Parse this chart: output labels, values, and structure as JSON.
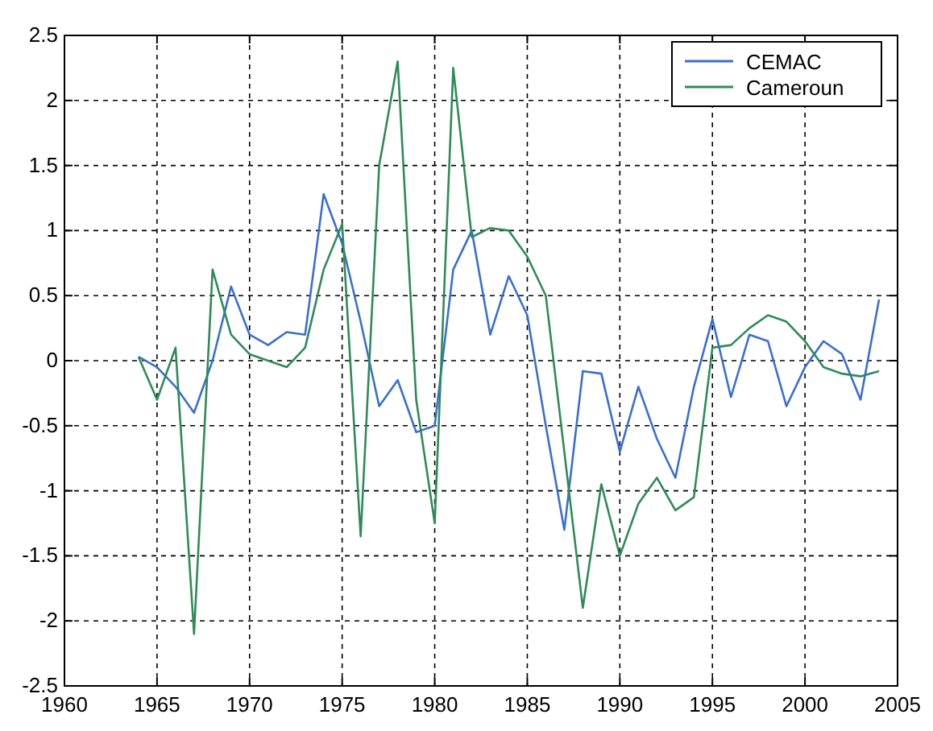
{
  "chart_data": {
    "type": "line",
    "x": [
      1964,
      1965,
      1966,
      1967,
      1968,
      1969,
      1970,
      1971,
      1972,
      1973,
      1974,
      1975,
      1976,
      1977,
      1978,
      1979,
      1980,
      1981,
      1982,
      1983,
      1984,
      1985,
      1986,
      1987,
      1988,
      1989,
      1990,
      1991,
      1992,
      1993,
      1994,
      1995,
      1996,
      1997,
      1998,
      1999,
      2000,
      2001,
      2002,
      2003,
      2004
    ],
    "series": [
      {
        "name": "CEMAC",
        "color": "#3a6fd0",
        "values": [
          0.03,
          -0.05,
          -0.2,
          -0.4,
          0.0,
          0.57,
          0.2,
          0.12,
          0.22,
          0.2,
          1.28,
          0.9,
          0.3,
          -0.35,
          -0.15,
          -0.55,
          -0.5,
          0.7,
          1.0,
          0.2,
          0.65,
          0.35,
          -0.5,
          -1.3,
          -0.08,
          -0.1,
          -0.7,
          -0.2,
          -0.6,
          -0.9,
          -0.2,
          0.32,
          -0.28,
          0.2,
          0.15,
          -0.35,
          -0.05,
          0.15,
          0.05,
          -0.3,
          0.47
        ]
      },
      {
        "name": "Cameroun",
        "color": "#2e8b57",
        "values": [
          0.03,
          -0.3,
          0.1,
          -2.1,
          0.7,
          0.2,
          0.05,
          0.0,
          -0.05,
          0.1,
          0.7,
          1.05,
          -1.35,
          1.5,
          2.3,
          -0.3,
          -1.25,
          2.25,
          0.95,
          1.02,
          1.0,
          0.8,
          0.5,
          -0.7,
          -1.9,
          -0.95,
          -1.5,
          -1.1,
          -0.9,
          -1.15,
          -1.05,
          0.1,
          0.12,
          0.25,
          0.35,
          0.3,
          0.15,
          -0.05,
          -0.1,
          -0.12,
          -0.08
        ]
      }
    ],
    "xlim": [
      1960,
      2005
    ],
    "xticks": [
      1960,
      1965,
      1970,
      1975,
      1980,
      1985,
      1990,
      1995,
      2000,
      2005
    ],
    "ylim": [
      -2.5,
      2.5
    ],
    "yticks": [
      -2.5,
      -2,
      -1.5,
      -1,
      -0.5,
      0,
      0.5,
      1,
      1.5,
      2,
      2.5
    ],
    "grid": true,
    "legend": "top right"
  }
}
